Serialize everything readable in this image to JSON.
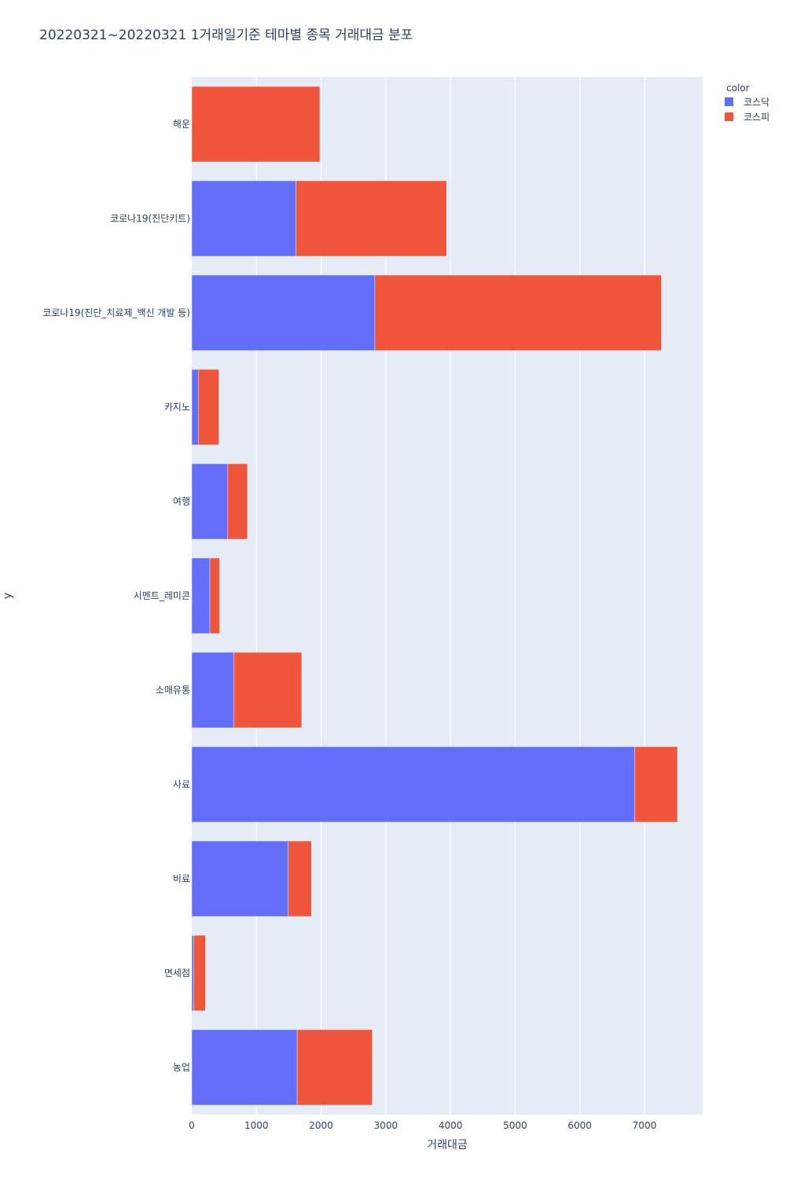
{
  "chart_data": {
    "type": "bar",
    "orientation": "horizontal",
    "barmode": "stack",
    "title": "20220321~20220321 1거래일기준 테마별 종목 거래대금 분포",
    "xlabel": "거래대금",
    "ylabel": "y",
    "xlim": [
      0,
      7900
    ],
    "xticks": [
      0,
      1000,
      2000,
      3000,
      4000,
      5000,
      6000,
      7000
    ],
    "grid": true,
    "legend": {
      "title": "color",
      "placement": "top-right"
    },
    "categories": [
      "해운",
      "코로나19(진단키트)",
      "코로나19(진단_치료제_백신 개발 등)",
      "카지노",
      "여행",
      "시멘트_레미콘",
      "소매유통",
      "사료",
      "비료",
      "면세점",
      "농업"
    ],
    "series": [
      {
        "name": "코스닥",
        "color": "#636efa",
        "values": [
          0,
          1610,
          2830,
          100,
          550,
          280,
          650,
          6850,
          1490,
          30,
          1630
        ]
      },
      {
        "name": "코스피",
        "color": "#ef553b",
        "values": [
          1980,
          2330,
          4430,
          320,
          310,
          150,
          1050,
          660,
          360,
          180,
          1160
        ]
      }
    ]
  }
}
